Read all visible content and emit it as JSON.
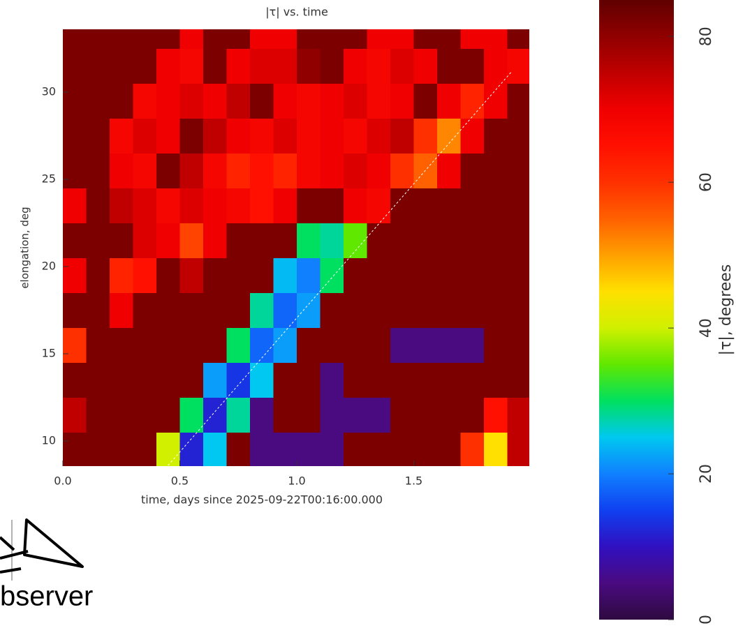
{
  "chart_data": {
    "type": "heatmap",
    "title": "|τ| vs. time",
    "xlabel": "time, days since 2025-09-22T00:16:00.000",
    "ylabel": "elongation, deg",
    "x": [
      0.05,
      0.15,
      0.25,
      0.35,
      0.45,
      0.55,
      0.65,
      0.75,
      0.85,
      0.95,
      1.05,
      1.15,
      1.25,
      1.35,
      1.45,
      1.55,
      1.65,
      1.75,
      1.85,
      1.95
    ],
    "y": [
      9.5,
      11.5,
      13.5,
      15.5,
      17.5,
      19.5,
      21.5,
      23.5,
      25.5,
      27.5,
      29.5,
      31.5,
      33.5
    ],
    "z": [
      [
        82,
        82,
        82,
        82,
        40,
        12,
        25,
        82,
        5,
        5,
        5,
        5,
        82,
        82,
        82,
        82,
        82,
        60,
        45,
        75
      ],
      [
        75,
        82,
        82,
        82,
        82,
        30,
        12,
        28,
        5,
        82,
        82,
        5,
        5,
        5,
        82,
        82,
        82,
        82,
        65,
        75
      ],
      [
        82,
        82,
        82,
        82,
        82,
        82,
        22,
        14,
        25,
        82,
        82,
        5,
        82,
        82,
        82,
        82,
        82,
        82,
        82,
        82
      ],
      [
        60,
        82,
        82,
        82,
        82,
        82,
        82,
        30,
        18,
        22,
        82,
        82,
        82,
        82,
        5,
        5,
        5,
        5,
        82,
        82
      ],
      [
        82,
        82,
        70,
        82,
        82,
        82,
        82,
        82,
        28,
        18,
        22,
        82,
        82,
        82,
        82,
        82,
        82,
        82,
        82,
        82
      ],
      [
        70,
        82,
        62,
        65,
        82,
        75,
        82,
        82,
        82,
        24,
        20,
        30,
        82,
        82,
        82,
        82,
        82,
        82,
        82,
        82
      ],
      [
        82,
        82,
        82,
        72,
        70,
        58,
        70,
        82,
        82,
        82,
        30,
        28,
        35,
        82,
        82,
        82,
        82,
        82,
        82,
        82
      ],
      [
        70,
        82,
        75,
        72,
        68,
        72,
        70,
        68,
        65,
        70,
        82,
        82,
        70,
        68,
        82,
        82,
        82,
        82,
        82,
        82
      ],
      [
        82,
        82,
        70,
        68,
        82,
        75,
        68,
        62,
        65,
        62,
        68,
        70,
        72,
        70,
        60,
        55,
        70,
        82,
        82,
        82
      ],
      [
        82,
        82,
        68,
        72,
        70,
        82,
        75,
        70,
        68,
        72,
        68,
        70,
        68,
        72,
        75,
        60,
        52,
        70,
        82,
        82
      ],
      [
        82,
        82,
        82,
        68,
        70,
        72,
        70,
        75,
        82,
        70,
        68,
        70,
        72,
        68,
        70,
        82,
        70,
        62,
        70,
        82
      ],
      [
        82,
        82,
        82,
        82,
        70,
        68,
        82,
        70,
        72,
        72,
        80,
        82,
        70,
        68,
        72,
        70,
        82,
        82,
        70,
        68
      ],
      [
        82,
        82,
        82,
        82,
        82,
        70,
        82,
        82,
        70,
        70,
        82,
        82,
        82,
        70,
        70,
        82,
        82,
        70,
        70,
        82
      ]
    ],
    "xlim": [
      0,
      1.994
    ],
    "ylim": [
      8.56,
      33.6
    ],
    "xticks": [
      {
        "value": 0,
        "label": "0.0"
      },
      0.5,
      {
        "value": 1,
        "label": "1.0"
      },
      1.5
    ],
    "yticks": [
      10,
      15,
      20,
      25,
      30
    ],
    "fit_line": {
      "x": [
        0.45,
        1.92
      ],
      "y": [
        8.6,
        31.2
      ],
      "color": "#ffffff"
    },
    "colorbar": {
      "label": "|τ|, degrees",
      "clim": [
        0,
        85
      ],
      "ticks": [
        0,
        20,
        40,
        60,
        80
      ],
      "colors": [
        "#2e0a40",
        "#4a0a80",
        "#3010c0",
        "#1040f0",
        "#1080ff",
        "#00c8f0",
        "#00e060",
        "#60e800",
        "#d0f000",
        "#ffe000",
        "#ffa000",
        "#ff6000",
        "#ff3000",
        "#ff1000",
        "#f00000",
        "#c00000",
        "#900000",
        "#600000"
      ]
    }
  },
  "logo": {
    "text": "bserver"
  }
}
